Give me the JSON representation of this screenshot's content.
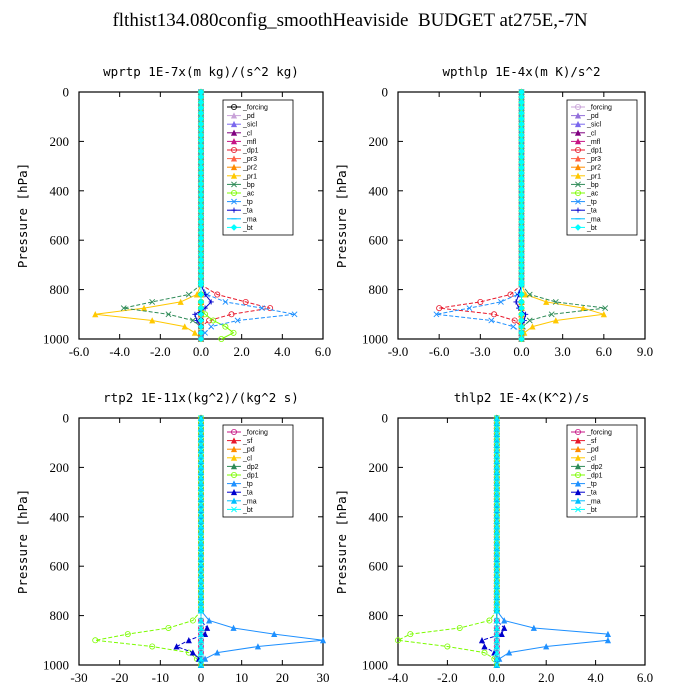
{
  "title": "flthist134.080config_smoothHeaviside  BUDGET at275E,-7N",
  "chart_data": [
    {
      "type": "line",
      "title": "wprtp  1E-7x(m kg)/(s^2 kg)",
      "ylabel": "Pressure [hPa]",
      "xlim": [
        -6,
        6
      ],
      "ylim": [
        1000,
        0
      ],
      "xticks": [
        "-6.0",
        "-4.0",
        "-2.0",
        "0.0",
        "2.0",
        "4.0",
        "6.0"
      ],
      "yticks": [
        "0",
        "200",
        "400",
        "600",
        "800",
        "1000"
      ],
      "y": [
        0,
        780,
        820,
        850,
        875,
        900,
        925,
        950,
        975,
        1000
      ],
      "series": [
        {
          "name": "_forcing",
          "color": "#000000",
          "values": [
            0,
            0,
            0,
            0,
            0,
            0,
            0,
            0,
            0,
            0
          ]
        },
        {
          "name": "_pd",
          "color": "#c8a2d8",
          "values": [
            0,
            0,
            0,
            0,
            0,
            0,
            0,
            0,
            0,
            0
          ]
        },
        {
          "name": "_sicl",
          "color": "#7b68ee",
          "values": [
            0,
            0,
            0,
            0,
            0,
            0,
            0,
            0,
            0,
            0
          ]
        },
        {
          "name": "_cl",
          "color": "#800080",
          "values": [
            0,
            0,
            0,
            0,
            0,
            0,
            0,
            0,
            0,
            0
          ]
        },
        {
          "name": "_mfl",
          "color": "#c71585",
          "values": [
            0,
            0,
            0,
            0,
            0,
            0,
            0,
            0,
            0,
            0
          ]
        },
        {
          "name": "_dp1",
          "color": "#e8192c",
          "values": [
            0,
            0,
            0.8,
            2.2,
            3.4,
            1.5,
            0.4,
            0,
            0,
            0
          ]
        },
        {
          "name": "_pr3",
          "color": "#ff6347",
          "values": [
            0,
            0,
            0,
            0,
            0,
            0,
            0,
            0,
            0,
            0
          ]
        },
        {
          "name": "_pr2",
          "color": "#ff8c00",
          "values": [
            0,
            0,
            0,
            0,
            0,
            0,
            0,
            0,
            0,
            0
          ]
        },
        {
          "name": "_pr1",
          "color": "#ffc800",
          "values": [
            0,
            0,
            -0.2,
            -1.0,
            -2.8,
            -5.2,
            -2.4,
            -0.8,
            -0.3,
            0
          ]
        },
        {
          "name": "_bp",
          "color": "#2e8b57",
          "values": [
            0,
            0,
            -0.6,
            -2.4,
            -3.8,
            -1.6,
            -0.4,
            0,
            0,
            0
          ]
        },
        {
          "name": "_ac",
          "color": "#7cfc00",
          "values": [
            0,
            0,
            0,
            0,
            0,
            0.2,
            0.6,
            1.2,
            1.6,
            1.0
          ]
        },
        {
          "name": "_tp",
          "color": "#1e90ff",
          "values": [
            0,
            0,
            0.3,
            1.2,
            3.0,
            4.6,
            1.8,
            0.5,
            0.2,
            0
          ]
        },
        {
          "name": "_ta",
          "color": "#0000cd",
          "values": [
            0,
            0,
            0.2,
            0.5,
            0.2,
            -0.3,
            -0.2,
            0,
            0,
            0
          ]
        },
        {
          "name": "_ma",
          "color": "#00bfff",
          "values": [
            0,
            0,
            0,
            0,
            0,
            0,
            0,
            0,
            0,
            0
          ]
        },
        {
          "name": "_bt",
          "color": "#00ffff",
          "values": [
            0,
            0,
            0,
            0,
            0,
            0,
            0,
            0,
            0,
            0
          ]
        }
      ]
    },
    {
      "type": "line",
      "title": "wpthlp  1E-4x(m K)/s^2",
      "ylabel": "Pressure [hPa]",
      "xlim": [
        -9,
        9
      ],
      "ylim": [
        1000,
        0
      ],
      "xticks": [
        "-9.0",
        "-6.0",
        "-3.0",
        "0.0",
        "3.0",
        "6.0",
        "9.0"
      ],
      "yticks": [
        "0",
        "200",
        "400",
        "600",
        "800",
        "1000"
      ],
      "y": [
        0,
        780,
        820,
        850,
        875,
        900,
        925,
        950,
        975,
        1000
      ],
      "series": [
        {
          "name": "_forcing",
          "color": "#c8a2d8",
          "values": [
            0,
            0,
            0,
            0,
            0,
            0,
            0,
            0,
            0,
            0
          ]
        },
        {
          "name": "_pd",
          "color": "#9370db",
          "values": [
            0,
            0,
            0,
            0,
            0,
            0,
            0,
            0,
            0,
            0
          ]
        },
        {
          "name": "_sicl",
          "color": "#7b68ee",
          "values": [
            0,
            0,
            0,
            0,
            0,
            0,
            0,
            0,
            0,
            0
          ]
        },
        {
          "name": "_cl",
          "color": "#800080",
          "values": [
            0,
            0,
            0,
            0,
            0,
            0,
            0,
            0,
            0,
            0
          ]
        },
        {
          "name": "_mfl",
          "color": "#c71585",
          "values": [
            0,
            0,
            0,
            0,
            0,
            0,
            0,
            0,
            0,
            0
          ]
        },
        {
          "name": "_dp1",
          "color": "#e8192c",
          "values": [
            0,
            0,
            -0.8,
            -3.0,
            -6.0,
            -2.0,
            -0.5,
            0,
            0,
            0
          ]
        },
        {
          "name": "_pr3",
          "color": "#ff6347",
          "values": [
            0,
            0,
            0,
            0,
            0,
            0,
            0,
            0,
            0,
            0
          ]
        },
        {
          "name": "_pr2",
          "color": "#ff8c00",
          "values": [
            0,
            0,
            0,
            0,
            0,
            0,
            0,
            0,
            0,
            0
          ]
        },
        {
          "name": "_pr1",
          "color": "#ffc800",
          "values": [
            0,
            0,
            0.3,
            1.8,
            4.5,
            6.0,
            2.5,
            0.8,
            0.2,
            0
          ]
        },
        {
          "name": "_bp",
          "color": "#2e8b57",
          "values": [
            0,
            0,
            0.6,
            2.5,
            6.1,
            2.2,
            0.6,
            0.1,
            0,
            0
          ]
        },
        {
          "name": "_ac",
          "color": "#7cfc00",
          "values": [
            0,
            0,
            0,
            0,
            0,
            0,
            0,
            0,
            0,
            0
          ]
        },
        {
          "name": "_tp",
          "color": "#1e90ff",
          "values": [
            0,
            0,
            -0.3,
            -1.5,
            -3.8,
            -6.2,
            -2.2,
            -0.6,
            0,
            0
          ]
        },
        {
          "name": "_ta",
          "color": "#0000cd",
          "values": [
            0,
            0,
            -0.2,
            -0.4,
            -0.2,
            0.3,
            0.2,
            0,
            0,
            0
          ]
        },
        {
          "name": "_ma",
          "color": "#00bfff",
          "values": [
            0,
            0,
            0,
            0,
            0,
            0,
            0,
            0,
            0,
            0
          ]
        },
        {
          "name": "_bt",
          "color": "#00ffff",
          "values": [
            0,
            0,
            0,
            0,
            0,
            0,
            0,
            0,
            0,
            0
          ]
        }
      ]
    },
    {
      "type": "line",
      "title": "rtp2  1E-11x(kg^2)/(kg^2 s)",
      "ylabel": "Pressure [hPa]",
      "xlim": [
        -30,
        30
      ],
      "ylim": [
        1000,
        0
      ],
      "xticks": [
        "-30",
        "-20",
        "-10",
        "0",
        "10",
        "20",
        "30"
      ],
      "yticks": [
        "0",
        "200",
        "400",
        "600",
        "800",
        "1000"
      ],
      "y": [
        0,
        780,
        820,
        850,
        875,
        900,
        925,
        950,
        975,
        1000
      ],
      "series": [
        {
          "name": "_forcing",
          "color": "#c71585",
          "values": [
            0,
            0,
            0,
            0,
            0,
            0,
            0,
            0,
            0,
            0
          ]
        },
        {
          "name": "_sf",
          "color": "#e8192c",
          "values": [
            0,
            0,
            0,
            0,
            0,
            0,
            0,
            0,
            0,
            0
          ]
        },
        {
          "name": "_pd",
          "color": "#ff8c00",
          "values": [
            0,
            0,
            0,
            0,
            0,
            0,
            0,
            0,
            0,
            0
          ]
        },
        {
          "name": "_cl",
          "color": "#ffc800",
          "values": [
            0,
            0,
            0,
            0,
            0,
            0,
            0,
            0,
            0,
            0
          ]
        },
        {
          "name": "_dp2",
          "color": "#2e8b57",
          "values": [
            0,
            0,
            0,
            0,
            0,
            0,
            0,
            0,
            0,
            0
          ]
        },
        {
          "name": "_dp1",
          "color": "#7cfc00",
          "values": [
            0,
            0,
            -2.0,
            -8.0,
            -18.0,
            -26.0,
            -12.0,
            -3.0,
            -1.0,
            0
          ]
        },
        {
          "name": "_tp",
          "color": "#1e90ff",
          "values": [
            0,
            0,
            2.0,
            8.0,
            18.0,
            30.0,
            14.0,
            4.0,
            1.0,
            0
          ]
        },
        {
          "name": "_ta",
          "color": "#0000cd",
          "values": [
            0,
            0,
            0,
            1.5,
            1.0,
            -3.0,
            -6.0,
            -2.0,
            -0.5,
            0
          ]
        },
        {
          "name": "_ma",
          "color": "#00bfff",
          "values": [
            0,
            0,
            0,
            0,
            0,
            0,
            0,
            0,
            0,
            0
          ]
        },
        {
          "name": "_bt",
          "color": "#00ffff",
          "values": [
            0,
            0,
            0,
            0,
            0,
            0,
            0,
            0,
            0,
            0
          ]
        }
      ]
    },
    {
      "type": "line",
      "title": "thlp2  1E-4x(K^2)/s",
      "ylabel": "Pressure [hPa]",
      "xlim": [
        -4,
        6
      ],
      "ylim": [
        1000,
        0
      ],
      "xticks": [
        "-4.0",
        "-2.0",
        "0.0",
        "2.0",
        "4.0",
        "6.0"
      ],
      "yticks": [
        "0",
        "200",
        "400",
        "600",
        "800",
        "1000"
      ],
      "y": [
        0,
        780,
        820,
        850,
        875,
        900,
        925,
        950,
        975,
        1000
      ],
      "series": [
        {
          "name": "_forcing",
          "color": "#c71585",
          "values": [
            0,
            0,
            0,
            0,
            0,
            0,
            0,
            0,
            0,
            0
          ]
        },
        {
          "name": "_sf",
          "color": "#e8192c",
          "values": [
            0,
            0,
            0,
            0,
            0,
            0,
            0,
            0,
            0,
            0
          ]
        },
        {
          "name": "_pd",
          "color": "#ff8c00",
          "values": [
            0,
            0,
            0,
            0,
            0,
            0,
            0,
            0,
            0,
            0
          ]
        },
        {
          "name": "_cl",
          "color": "#ffc800",
          "values": [
            0,
            0,
            0,
            0,
            0,
            0,
            0,
            0,
            0,
            0
          ]
        },
        {
          "name": "_dp2",
          "color": "#2e8b57",
          "values": [
            0,
            0,
            0,
            0,
            0,
            0,
            0,
            0,
            0,
            0
          ]
        },
        {
          "name": "_dp1",
          "color": "#7cfc00",
          "values": [
            0,
            0,
            -0.3,
            -1.5,
            -3.5,
            -4.0,
            -2.0,
            -0.5,
            -0.1,
            0
          ]
        },
        {
          "name": "_tp",
          "color": "#1e90ff",
          "values": [
            0,
            0,
            0.3,
            1.5,
            4.5,
            4.5,
            2.0,
            0.5,
            0.1,
            0
          ]
        },
        {
          "name": "_ta",
          "color": "#0000cd",
          "values": [
            0,
            0,
            0,
            0.3,
            0.2,
            -0.6,
            -0.5,
            -0.1,
            0,
            0
          ]
        },
        {
          "name": "_ma",
          "color": "#00bfff",
          "values": [
            0,
            0,
            0,
            0,
            0,
            0,
            0,
            0,
            0,
            0
          ]
        },
        {
          "name": "_bt",
          "color": "#00ffff",
          "values": [
            0,
            0,
            0,
            0,
            0,
            0,
            0,
            0,
            0,
            0
          ]
        }
      ]
    }
  ]
}
